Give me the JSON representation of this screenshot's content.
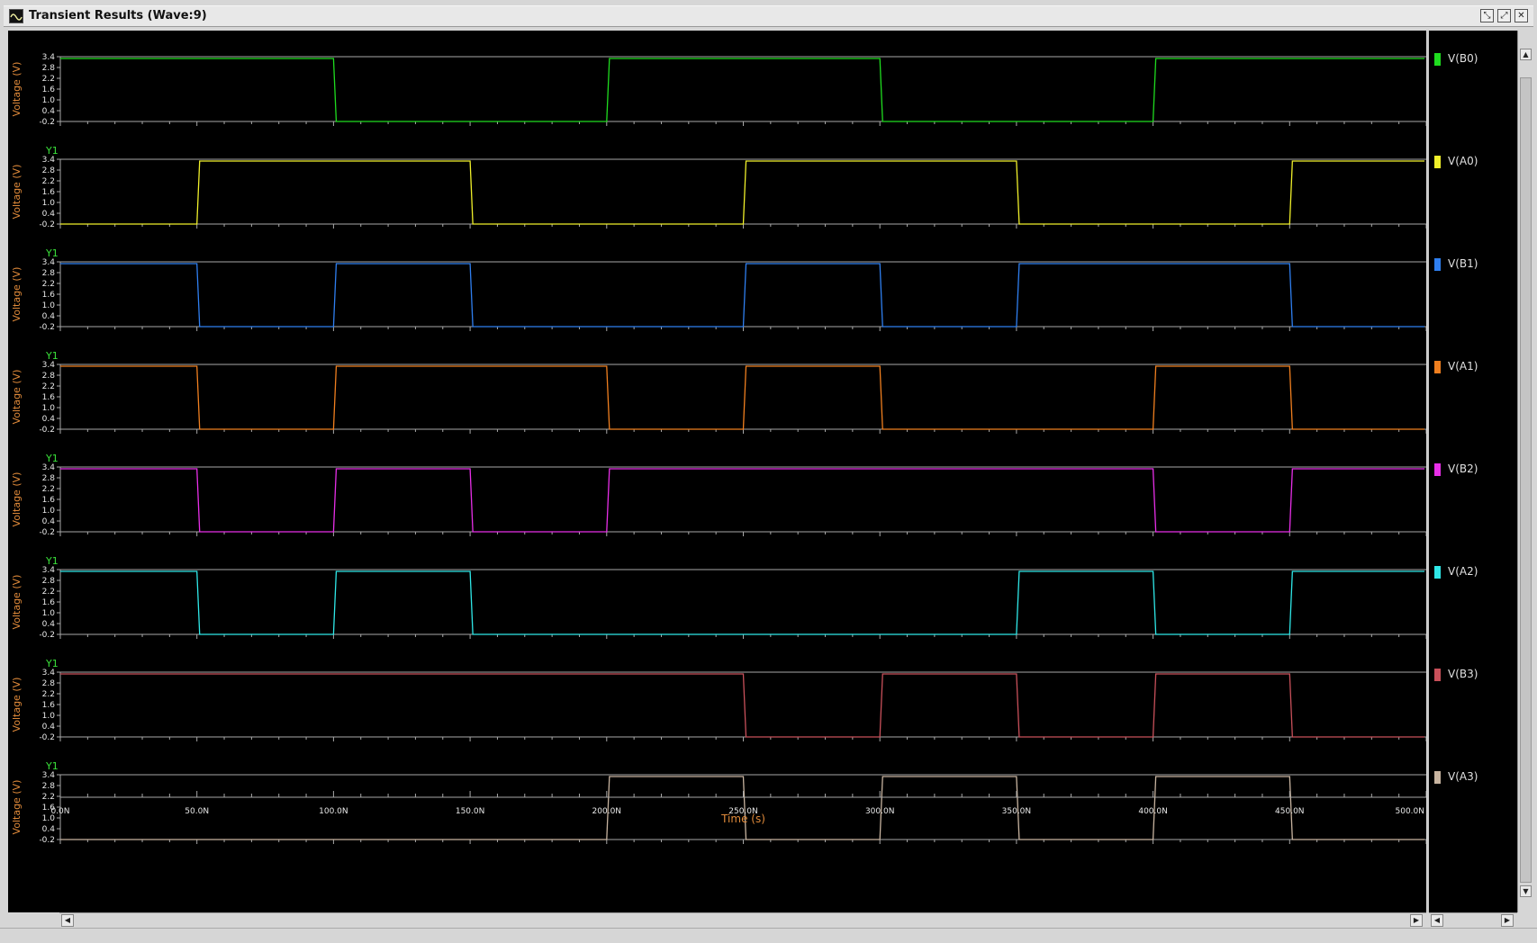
{
  "window": {
    "title": "Transient Results (Wave:9)",
    "buttons": {
      "restore": "⤡",
      "maximize": "⤢",
      "close": "✕"
    },
    "icon": "wave-icon"
  },
  "panel_labels": {
    "y_axis_name": "Y1",
    "y_axis_label": "Voltage (V)"
  },
  "chart_data": {
    "type": "line",
    "title": "Transient Results (Wave:9)",
    "xlabel": "Time (s)",
    "ylabel": "Voltage (V)",
    "xlim": [
      0,
      500
    ],
    "ylim": [
      -0.2,
      3.4
    ],
    "x_ticks": [
      "0.0N",
      "50.0N",
      "100.0N",
      "150.0N",
      "200.0N",
      "250.0N",
      "300.0N",
      "350.0N",
      "400.0N",
      "450.0N",
      "500.0N"
    ],
    "y_ticks": [
      "3.4",
      "2.8",
      "2.2",
      "1.6",
      "1.0",
      "0.4",
      "-0.2"
    ],
    "low": -0.2,
    "high": 3.3,
    "edge_ns": 1,
    "series": [
      {
        "name": "V(B0)",
        "color": "#1fdc1f",
        "initial": 1,
        "transitions": [
          100,
          200,
          300,
          400
        ]
      },
      {
        "name": "V(A0)",
        "color": "#f0f02a",
        "initial": 0,
        "transitions": [
          50,
          150,
          250,
          350,
          450
        ]
      },
      {
        "name": "V(B1)",
        "color": "#2f7ff0",
        "initial": 1,
        "transitions": [
          50,
          100,
          150,
          250,
          300,
          350,
          450
        ]
      },
      {
        "name": "V(A1)",
        "color": "#f07f1f",
        "initial": 1,
        "transitions": [
          50,
          100,
          200,
          250,
          300,
          400,
          450
        ]
      },
      {
        "name": "V(B2)",
        "color": "#e82fe8",
        "initial": 1,
        "transitions": [
          50,
          100,
          150,
          200,
          400,
          450
        ]
      },
      {
        "name": "V(A2)",
        "color": "#2fe8e8",
        "initial": 1,
        "transitions": [
          50,
          100,
          150,
          350,
          400,
          450
        ]
      },
      {
        "name": "V(B3)",
        "color": "#c8505a",
        "initial": 1,
        "transitions": [
          250,
          300,
          350,
          400,
          450
        ]
      },
      {
        "name": "V(A3)",
        "color": "#c8b4a0",
        "initial": 0,
        "transitions": [
          200,
          250,
          300,
          350,
          400,
          450
        ]
      }
    ]
  }
}
